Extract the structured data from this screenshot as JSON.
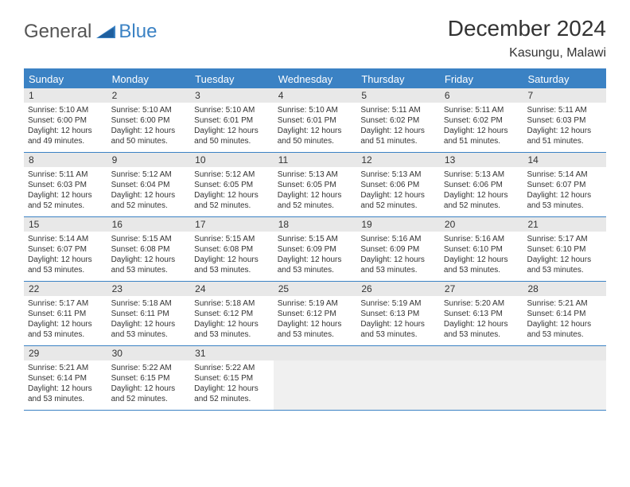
{
  "logo": {
    "part1": "General",
    "part2": "Blue"
  },
  "title": {
    "month": "December 2024",
    "location": "Kasungu, Malawi"
  },
  "colors": {
    "accent": "#3b82c4",
    "daybar": "#e8e8e8",
    "empty": "#f0f0f0",
    "text": "#333333",
    "logo_gray": "#555555",
    "logo_blue": "#3b82c4",
    "background": "#ffffff"
  },
  "typography": {
    "title_fontsize": 28,
    "location_fontsize": 16,
    "header_fontsize": 13,
    "daynum_fontsize": 12,
    "cell_fontsize": 10
  },
  "weekdays": [
    "Sunday",
    "Monday",
    "Tuesday",
    "Wednesday",
    "Thursday",
    "Friday",
    "Saturday"
  ],
  "weeks": [
    [
      {
        "n": "1",
        "sr": "5:10 AM",
        "ss": "6:00 PM",
        "dl": "12 hours and 49 minutes."
      },
      {
        "n": "2",
        "sr": "5:10 AM",
        "ss": "6:00 PM",
        "dl": "12 hours and 50 minutes."
      },
      {
        "n": "3",
        "sr": "5:10 AM",
        "ss": "6:01 PM",
        "dl": "12 hours and 50 minutes."
      },
      {
        "n": "4",
        "sr": "5:10 AM",
        "ss": "6:01 PM",
        "dl": "12 hours and 50 minutes."
      },
      {
        "n": "5",
        "sr": "5:11 AM",
        "ss": "6:02 PM",
        "dl": "12 hours and 51 minutes."
      },
      {
        "n": "6",
        "sr": "5:11 AM",
        "ss": "6:02 PM",
        "dl": "12 hours and 51 minutes."
      },
      {
        "n": "7",
        "sr": "5:11 AM",
        "ss": "6:03 PM",
        "dl": "12 hours and 51 minutes."
      }
    ],
    [
      {
        "n": "8",
        "sr": "5:11 AM",
        "ss": "6:03 PM",
        "dl": "12 hours and 52 minutes."
      },
      {
        "n": "9",
        "sr": "5:12 AM",
        "ss": "6:04 PM",
        "dl": "12 hours and 52 minutes."
      },
      {
        "n": "10",
        "sr": "5:12 AM",
        "ss": "6:05 PM",
        "dl": "12 hours and 52 minutes."
      },
      {
        "n": "11",
        "sr": "5:13 AM",
        "ss": "6:05 PM",
        "dl": "12 hours and 52 minutes."
      },
      {
        "n": "12",
        "sr": "5:13 AM",
        "ss": "6:06 PM",
        "dl": "12 hours and 52 minutes."
      },
      {
        "n": "13",
        "sr": "5:13 AM",
        "ss": "6:06 PM",
        "dl": "12 hours and 52 minutes."
      },
      {
        "n": "14",
        "sr": "5:14 AM",
        "ss": "6:07 PM",
        "dl": "12 hours and 53 minutes."
      }
    ],
    [
      {
        "n": "15",
        "sr": "5:14 AM",
        "ss": "6:07 PM",
        "dl": "12 hours and 53 minutes."
      },
      {
        "n": "16",
        "sr": "5:15 AM",
        "ss": "6:08 PM",
        "dl": "12 hours and 53 minutes."
      },
      {
        "n": "17",
        "sr": "5:15 AM",
        "ss": "6:08 PM",
        "dl": "12 hours and 53 minutes."
      },
      {
        "n": "18",
        "sr": "5:15 AM",
        "ss": "6:09 PM",
        "dl": "12 hours and 53 minutes."
      },
      {
        "n": "19",
        "sr": "5:16 AM",
        "ss": "6:09 PM",
        "dl": "12 hours and 53 minutes."
      },
      {
        "n": "20",
        "sr": "5:16 AM",
        "ss": "6:10 PM",
        "dl": "12 hours and 53 minutes."
      },
      {
        "n": "21",
        "sr": "5:17 AM",
        "ss": "6:10 PM",
        "dl": "12 hours and 53 minutes."
      }
    ],
    [
      {
        "n": "22",
        "sr": "5:17 AM",
        "ss": "6:11 PM",
        "dl": "12 hours and 53 minutes."
      },
      {
        "n": "23",
        "sr": "5:18 AM",
        "ss": "6:11 PM",
        "dl": "12 hours and 53 minutes."
      },
      {
        "n": "24",
        "sr": "5:18 AM",
        "ss": "6:12 PM",
        "dl": "12 hours and 53 minutes."
      },
      {
        "n": "25",
        "sr": "5:19 AM",
        "ss": "6:12 PM",
        "dl": "12 hours and 53 minutes."
      },
      {
        "n": "26",
        "sr": "5:19 AM",
        "ss": "6:13 PM",
        "dl": "12 hours and 53 minutes."
      },
      {
        "n": "27",
        "sr": "5:20 AM",
        "ss": "6:13 PM",
        "dl": "12 hours and 53 minutes."
      },
      {
        "n": "28",
        "sr": "5:21 AM",
        "ss": "6:14 PM",
        "dl": "12 hours and 53 minutes."
      }
    ],
    [
      {
        "n": "29",
        "sr": "5:21 AM",
        "ss": "6:14 PM",
        "dl": "12 hours and 53 minutes."
      },
      {
        "n": "30",
        "sr": "5:22 AM",
        "ss": "6:15 PM",
        "dl": "12 hours and 52 minutes."
      },
      {
        "n": "31",
        "sr": "5:22 AM",
        "ss": "6:15 PM",
        "dl": "12 hours and 52 minutes."
      },
      null,
      null,
      null,
      null
    ]
  ],
  "labels": {
    "sunrise": "Sunrise:",
    "sunset": "Sunset:",
    "daylight": "Daylight:"
  }
}
